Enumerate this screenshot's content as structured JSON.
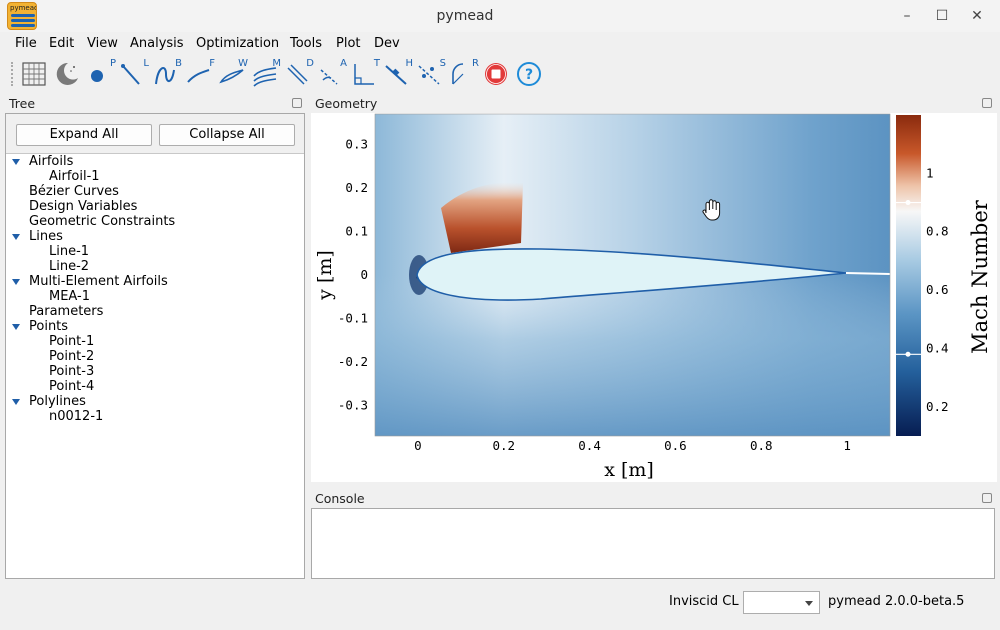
{
  "window": {
    "title": "pymead",
    "icon_label": "pymead"
  },
  "menu": [
    "File",
    "Edit",
    "View",
    "Analysis",
    "Optimization",
    "Tools",
    "Plot",
    "Dev"
  ],
  "toolbar": {
    "tools": [
      {
        "name": "grid-icon",
        "sup": ""
      },
      {
        "name": "dark-mode-icon",
        "sup": ""
      },
      {
        "name": "point-icon",
        "sup": "P"
      },
      {
        "name": "line-icon",
        "sup": "L"
      },
      {
        "name": "bezier-icon",
        "sup": "B"
      },
      {
        "name": "ferguson-icon",
        "sup": "F"
      },
      {
        "name": "webfoil-icon",
        "sup": "W"
      },
      {
        "name": "mea-icon",
        "sup": "M"
      },
      {
        "name": "distance-icon",
        "sup": "D"
      },
      {
        "name": "angle-icon",
        "sup": "A"
      },
      {
        "name": "perpendicular-icon",
        "sup": "T"
      },
      {
        "name": "hold-icon",
        "sup": "H"
      },
      {
        "name": "symmetry-icon",
        "sup": "S"
      },
      {
        "name": "radius-icon",
        "sup": "R"
      },
      {
        "name": "stop-icon",
        "sup": ""
      },
      {
        "name": "help-icon",
        "sup": ""
      }
    ]
  },
  "tree": {
    "title": "Tree",
    "expand_label": "Expand All",
    "collapse_label": "Collapse All",
    "items": [
      {
        "label": "Airfoils",
        "level": 0,
        "expanded": true
      },
      {
        "label": "Airfoil-1",
        "level": 1
      },
      {
        "label": "Bézier Curves",
        "level": 0
      },
      {
        "label": "Design Variables",
        "level": 0
      },
      {
        "label": "Geometric Constraints",
        "level": 0
      },
      {
        "label": "Lines",
        "level": 0,
        "expanded": true
      },
      {
        "label": "Line-1",
        "level": 1
      },
      {
        "label": "Line-2",
        "level": 1
      },
      {
        "label": "Multi-Element Airfoils",
        "level": 0,
        "expanded": true
      },
      {
        "label": "MEA-1",
        "level": 1
      },
      {
        "label": "Parameters",
        "level": 0
      },
      {
        "label": "Points",
        "level": 0,
        "expanded": true
      },
      {
        "label": "Point-1",
        "level": 1
      },
      {
        "label": "Point-2",
        "level": 1
      },
      {
        "label": "Point-3",
        "level": 1
      },
      {
        "label": "Point-4",
        "level": 1
      },
      {
        "label": "Polylines",
        "level": 0,
        "expanded": true
      },
      {
        "label": "n0012-1",
        "level": 1
      }
    ]
  },
  "geometry": {
    "title": "Geometry",
    "xlabel": "x [m]",
    "ylabel": "y [m]",
    "colorbar_label": "Mach Number",
    "xticks": [
      "0",
      "0.2",
      "0.4",
      "0.6",
      "0.8",
      "1"
    ],
    "yticks": [
      "0.3",
      "0.2",
      "0.1",
      "0",
      "-0.1",
      "-0.2",
      "-0.3"
    ],
    "cbar_ticks": [
      "1",
      "0.8",
      "0.6",
      "0.4",
      "0.2"
    ]
  },
  "chart_data": {
    "type": "heatmap",
    "title": "",
    "xlabel": "x [m]",
    "ylabel": "y [m]",
    "xlim": [
      -0.1,
      1.1
    ],
    "ylim": [
      -0.37,
      0.37
    ],
    "colorbar": {
      "label": "Mach Number",
      "range": [
        0.1,
        1.2
      ],
      "ticks": [
        1,
        0.8,
        0.6,
        0.4,
        0.2
      ],
      "markers": [
        0.9,
        0.38
      ]
    }
  },
  "console": {
    "title": "Console"
  },
  "status": {
    "cl_label": "Inviscid CL",
    "cl_value": "",
    "version": "pymead 2.0.0-beta.5"
  }
}
